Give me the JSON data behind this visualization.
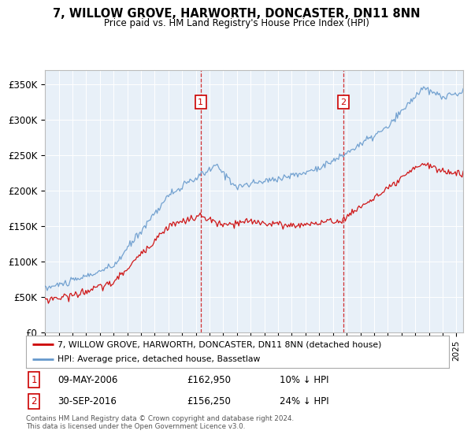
{
  "title": "7, WILLOW GROVE, HARWORTH, DONCASTER, DN11 8NN",
  "subtitle": "Price paid vs. HM Land Registry's House Price Index (HPI)",
  "ylabel_ticks": [
    "£0",
    "£50K",
    "£100K",
    "£150K",
    "£200K",
    "£250K",
    "£300K",
    "£350K"
  ],
  "ytick_values": [
    0,
    50000,
    100000,
    150000,
    200000,
    250000,
    300000,
    350000
  ],
  "ylim": [
    0,
    370000
  ],
  "xlim_start": 1995.0,
  "xlim_end": 2025.5,
  "sale1_x": 2006.354,
  "sale1_y": 162950,
  "sale1_label": "1",
  "sale1_date": "09-MAY-2006",
  "sale1_price": "£162,950",
  "sale1_hpi": "10% ↓ HPI",
  "sale2_x": 2016.748,
  "sale2_y": 156250,
  "sale2_label": "2",
  "sale2_date": "30-SEP-2016",
  "sale2_price": "£156,250",
  "sale2_hpi": "24% ↓ HPI",
  "line_color_sale": "#cc0000",
  "line_color_hpi": "#6699cc",
  "background_color": "#e8f0f8",
  "legend_label_sale": "7, WILLOW GROVE, HARWORTH, DONCASTER, DN11 8NN (detached house)",
  "legend_label_hpi": "HPI: Average price, detached house, Bassetlaw",
  "footer": "Contains HM Land Registry data © Crown copyright and database right 2024.\nThis data is licensed under the Open Government Licence v3.0."
}
